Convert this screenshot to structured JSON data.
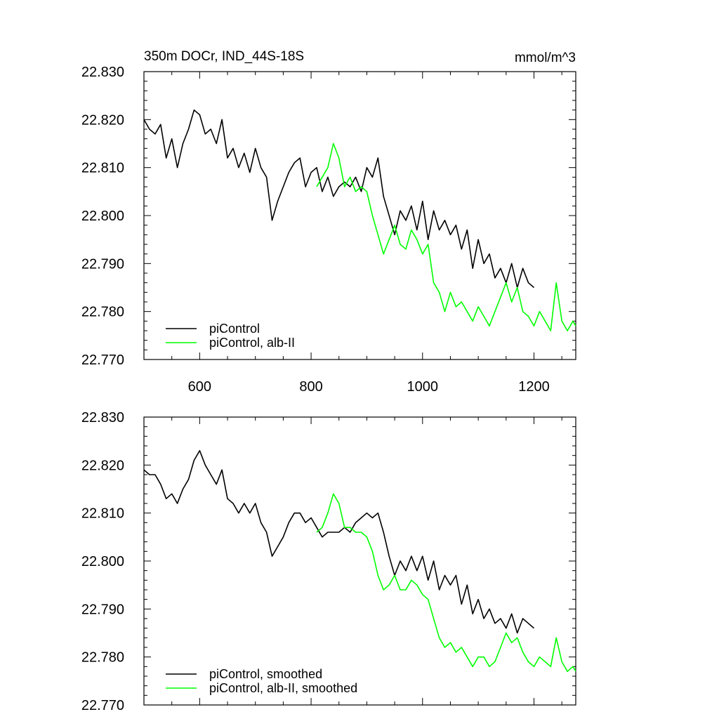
{
  "chart_data": [
    {
      "type": "line",
      "title": "350m DOCr, IND_44S-18S",
      "units": "mmol/m^3",
      "xlim": [
        500,
        1275
      ],
      "ylim": [
        22.77,
        22.83
      ],
      "xticks": [
        600,
        800,
        1000,
        1200
      ],
      "xtick_labels": [
        "600",
        "800",
        "1000",
        "1200"
      ],
      "yticks": [
        22.77,
        22.78,
        22.79,
        22.8,
        22.81,
        22.82,
        22.83
      ],
      "ytick_labels": [
        "22.770",
        "22.780",
        "22.790",
        "22.800",
        "22.810",
        "22.820",
        "22.830"
      ],
      "legend_position": "bottom-left",
      "series": [
        {
          "name": "piControl",
          "color": "#000000",
          "x": [
            500,
            510,
            520,
            530,
            540,
            550,
            560,
            570,
            580,
            590,
            600,
            610,
            620,
            630,
            640,
            650,
            660,
            670,
            680,
            690,
            700,
            710,
            720,
            730,
            740,
            750,
            760,
            770,
            780,
            790,
            800,
            810,
            820,
            830,
            840,
            850,
            860,
            870,
            880,
            890,
            900,
            910,
            920,
            930,
            940,
            950,
            960,
            970,
            980,
            990,
            1000,
            1010,
            1020,
            1030,
            1040,
            1050,
            1060,
            1070,
            1080,
            1090,
            1100,
            1110,
            1120,
            1130,
            1140,
            1150,
            1160,
            1170,
            1180,
            1190,
            1200
          ],
          "y": [
            22.82,
            22.818,
            22.817,
            22.819,
            22.812,
            22.816,
            22.81,
            22.815,
            22.818,
            22.822,
            22.821,
            22.817,
            22.818,
            22.815,
            22.82,
            22.812,
            22.814,
            22.81,
            22.813,
            22.809,
            22.814,
            22.81,
            22.808,
            22.799,
            22.803,
            22.806,
            22.809,
            22.811,
            22.812,
            22.806,
            22.809,
            22.81,
            22.805,
            22.808,
            22.804,
            22.806,
            22.807,
            22.806,
            22.808,
            22.805,
            22.81,
            22.808,
            22.812,
            22.804,
            22.8,
            22.796,
            22.801,
            22.799,
            22.802,
            22.797,
            22.803,
            22.795,
            22.801,
            22.797,
            22.799,
            22.796,
            22.798,
            22.793,
            22.797,
            22.789,
            22.795,
            22.79,
            22.792,
            22.787,
            22.789,
            22.786,
            22.79,
            22.785,
            22.789,
            22.786,
            22.785
          ]
        },
        {
          "name": "piControl, alb-II",
          "color": "#00ff00",
          "x": [
            810,
            820,
            830,
            840,
            850,
            860,
            870,
            880,
            890,
            900,
            910,
            920,
            930,
            940,
            950,
            960,
            970,
            980,
            990,
            1000,
            1010,
            1020,
            1030,
            1040,
            1050,
            1060,
            1070,
            1080,
            1090,
            1100,
            1110,
            1120,
            1130,
            1140,
            1150,
            1160,
            1170,
            1180,
            1190,
            1200,
            1210,
            1220,
            1230,
            1240,
            1250,
            1260,
            1270,
            1275
          ],
          "y": [
            22.806,
            22.808,
            22.81,
            22.815,
            22.812,
            22.806,
            22.808,
            22.805,
            22.806,
            22.805,
            22.8,
            22.796,
            22.792,
            22.795,
            22.798,
            22.794,
            22.793,
            22.797,
            22.795,
            22.792,
            22.794,
            22.786,
            22.784,
            22.78,
            22.784,
            22.781,
            22.782,
            22.78,
            22.778,
            22.781,
            22.779,
            22.777,
            22.78,
            22.783,
            22.786,
            22.782,
            22.785,
            22.78,
            22.779,
            22.777,
            22.78,
            22.778,
            22.776,
            22.786,
            22.778,
            22.776,
            22.778,
            22.777
          ]
        }
      ]
    },
    {
      "type": "line",
      "title": "",
      "xlim": [
        500,
        1275
      ],
      "ylim": [
        22.77,
        22.83
      ],
      "xticks": [
        600,
        800,
        1000,
        1200
      ],
      "yticks": [
        22.77,
        22.78,
        22.79,
        22.8,
        22.81,
        22.82,
        22.83
      ],
      "ytick_labels": [
        "22.770",
        "22.780",
        "22.790",
        "22.800",
        "22.810",
        "22.820",
        "22.830"
      ],
      "legend_position": "bottom-left",
      "series": [
        {
          "name": "piControl, smoothed",
          "color": "#000000",
          "x": [
            500,
            510,
            520,
            530,
            540,
            550,
            560,
            570,
            580,
            590,
            600,
            610,
            620,
            630,
            640,
            650,
            660,
            670,
            680,
            690,
            700,
            710,
            720,
            730,
            740,
            750,
            760,
            770,
            780,
            790,
            800,
            810,
            820,
            830,
            840,
            850,
            860,
            870,
            880,
            890,
            900,
            910,
            920,
            930,
            940,
            950,
            960,
            970,
            980,
            990,
            1000,
            1010,
            1020,
            1030,
            1040,
            1050,
            1060,
            1070,
            1080,
            1090,
            1100,
            1110,
            1120,
            1130,
            1140,
            1150,
            1160,
            1170,
            1180,
            1190,
            1200
          ],
          "y": [
            22.819,
            22.818,
            22.818,
            22.816,
            22.813,
            22.814,
            22.812,
            22.815,
            22.817,
            22.821,
            22.823,
            22.82,
            22.818,
            22.816,
            22.819,
            22.813,
            22.812,
            22.81,
            22.812,
            22.81,
            22.812,
            22.808,
            22.806,
            22.801,
            22.803,
            22.805,
            22.808,
            22.81,
            22.81,
            22.808,
            22.809,
            22.807,
            22.805,
            22.806,
            22.806,
            22.806,
            22.807,
            22.806,
            22.808,
            22.809,
            22.81,
            22.809,
            22.81,
            22.806,
            22.801,
            22.797,
            22.8,
            22.798,
            22.801,
            22.798,
            22.801,
            22.796,
            22.8,
            22.794,
            22.797,
            22.795,
            22.797,
            22.791,
            22.795,
            22.789,
            22.792,
            22.788,
            22.79,
            22.787,
            22.788,
            22.786,
            22.789,
            22.785,
            22.788,
            22.787,
            22.786
          ]
        },
        {
          "name": "piControl, alb-II, smoothed",
          "color": "#00ff00",
          "x": [
            810,
            820,
            830,
            840,
            850,
            860,
            870,
            880,
            890,
            900,
            910,
            920,
            930,
            940,
            950,
            960,
            970,
            980,
            990,
            1000,
            1010,
            1020,
            1030,
            1040,
            1050,
            1060,
            1070,
            1080,
            1090,
            1100,
            1110,
            1120,
            1130,
            1140,
            1150,
            1160,
            1170,
            1180,
            1190,
            1200,
            1210,
            1220,
            1230,
            1240,
            1250,
            1260,
            1270,
            1275
          ],
          "y": [
            22.806,
            22.807,
            22.81,
            22.814,
            22.812,
            22.807,
            22.807,
            22.806,
            22.806,
            22.805,
            22.802,
            22.797,
            22.794,
            22.795,
            22.797,
            22.794,
            22.794,
            22.796,
            22.795,
            22.793,
            22.792,
            22.788,
            22.784,
            22.782,
            22.783,
            22.781,
            22.782,
            22.78,
            22.778,
            22.78,
            22.78,
            22.778,
            22.779,
            22.782,
            22.785,
            22.783,
            22.784,
            22.781,
            22.779,
            22.778,
            22.78,
            22.779,
            22.778,
            22.784,
            22.779,
            22.777,
            22.778,
            22.777
          ]
        }
      ]
    }
  ]
}
